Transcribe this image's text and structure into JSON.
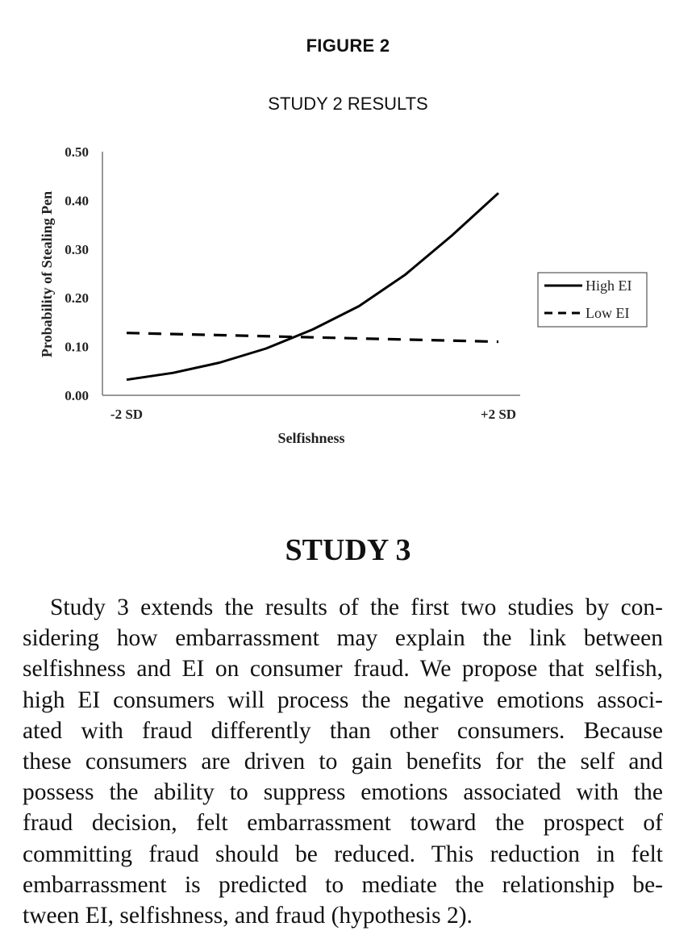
{
  "figure": {
    "label": "FIGURE 2",
    "title": "STUDY 2 RESULTS"
  },
  "chart_data": {
    "type": "line",
    "title": "STUDY 2 RESULTS",
    "xlabel": "Selfishness",
    "ylabel": "Probability of Stealing Pen",
    "x_tick_labels": [
      "-2 SD",
      "+2 SD"
    ],
    "y_ticks": [
      "0.00",
      "0.10",
      "0.20",
      "0.30",
      "0.40",
      "0.50"
    ],
    "ylim": [
      0,
      0.5
    ],
    "xlim": [
      -2,
      2
    ],
    "legend_position": "right",
    "grid": false,
    "series": [
      {
        "name": "High EI",
        "style": "solid",
        "x": [
          -2,
          -1.5,
          -1,
          -0.5,
          0,
          0.5,
          1,
          1.5,
          2
        ],
        "y": [
          0.032,
          0.046,
          0.067,
          0.096,
          0.135,
          0.183,
          0.248,
          0.328,
          0.415
        ]
      },
      {
        "name": "Low EI",
        "style": "dashed",
        "x": [
          -2,
          2
        ],
        "y": [
          0.128,
          0.11
        ]
      }
    ]
  },
  "section": {
    "heading": "STUDY 3",
    "lines": [
      "Study 3 extends the results of the first two studies by con-",
      "sidering how embarrassment may explain the link between",
      "selfishness and EI on consumer fraud. We propose that selfish,",
      "high EI consumers will process the negative emotions associ-",
      "ated with fraud differently than other consumers. Because",
      "these consumers are driven to gain benefits for the self and",
      "possess the ability to suppress emotions associated with the",
      "fraud decision, felt embarrassment toward the prospect of",
      "committing fraud should be reduced. This reduction in felt",
      "embarrassment is predicted to mediate the relationship be-",
      "tween EI, selfishness, and fraud (hypothesis 2)."
    ]
  }
}
